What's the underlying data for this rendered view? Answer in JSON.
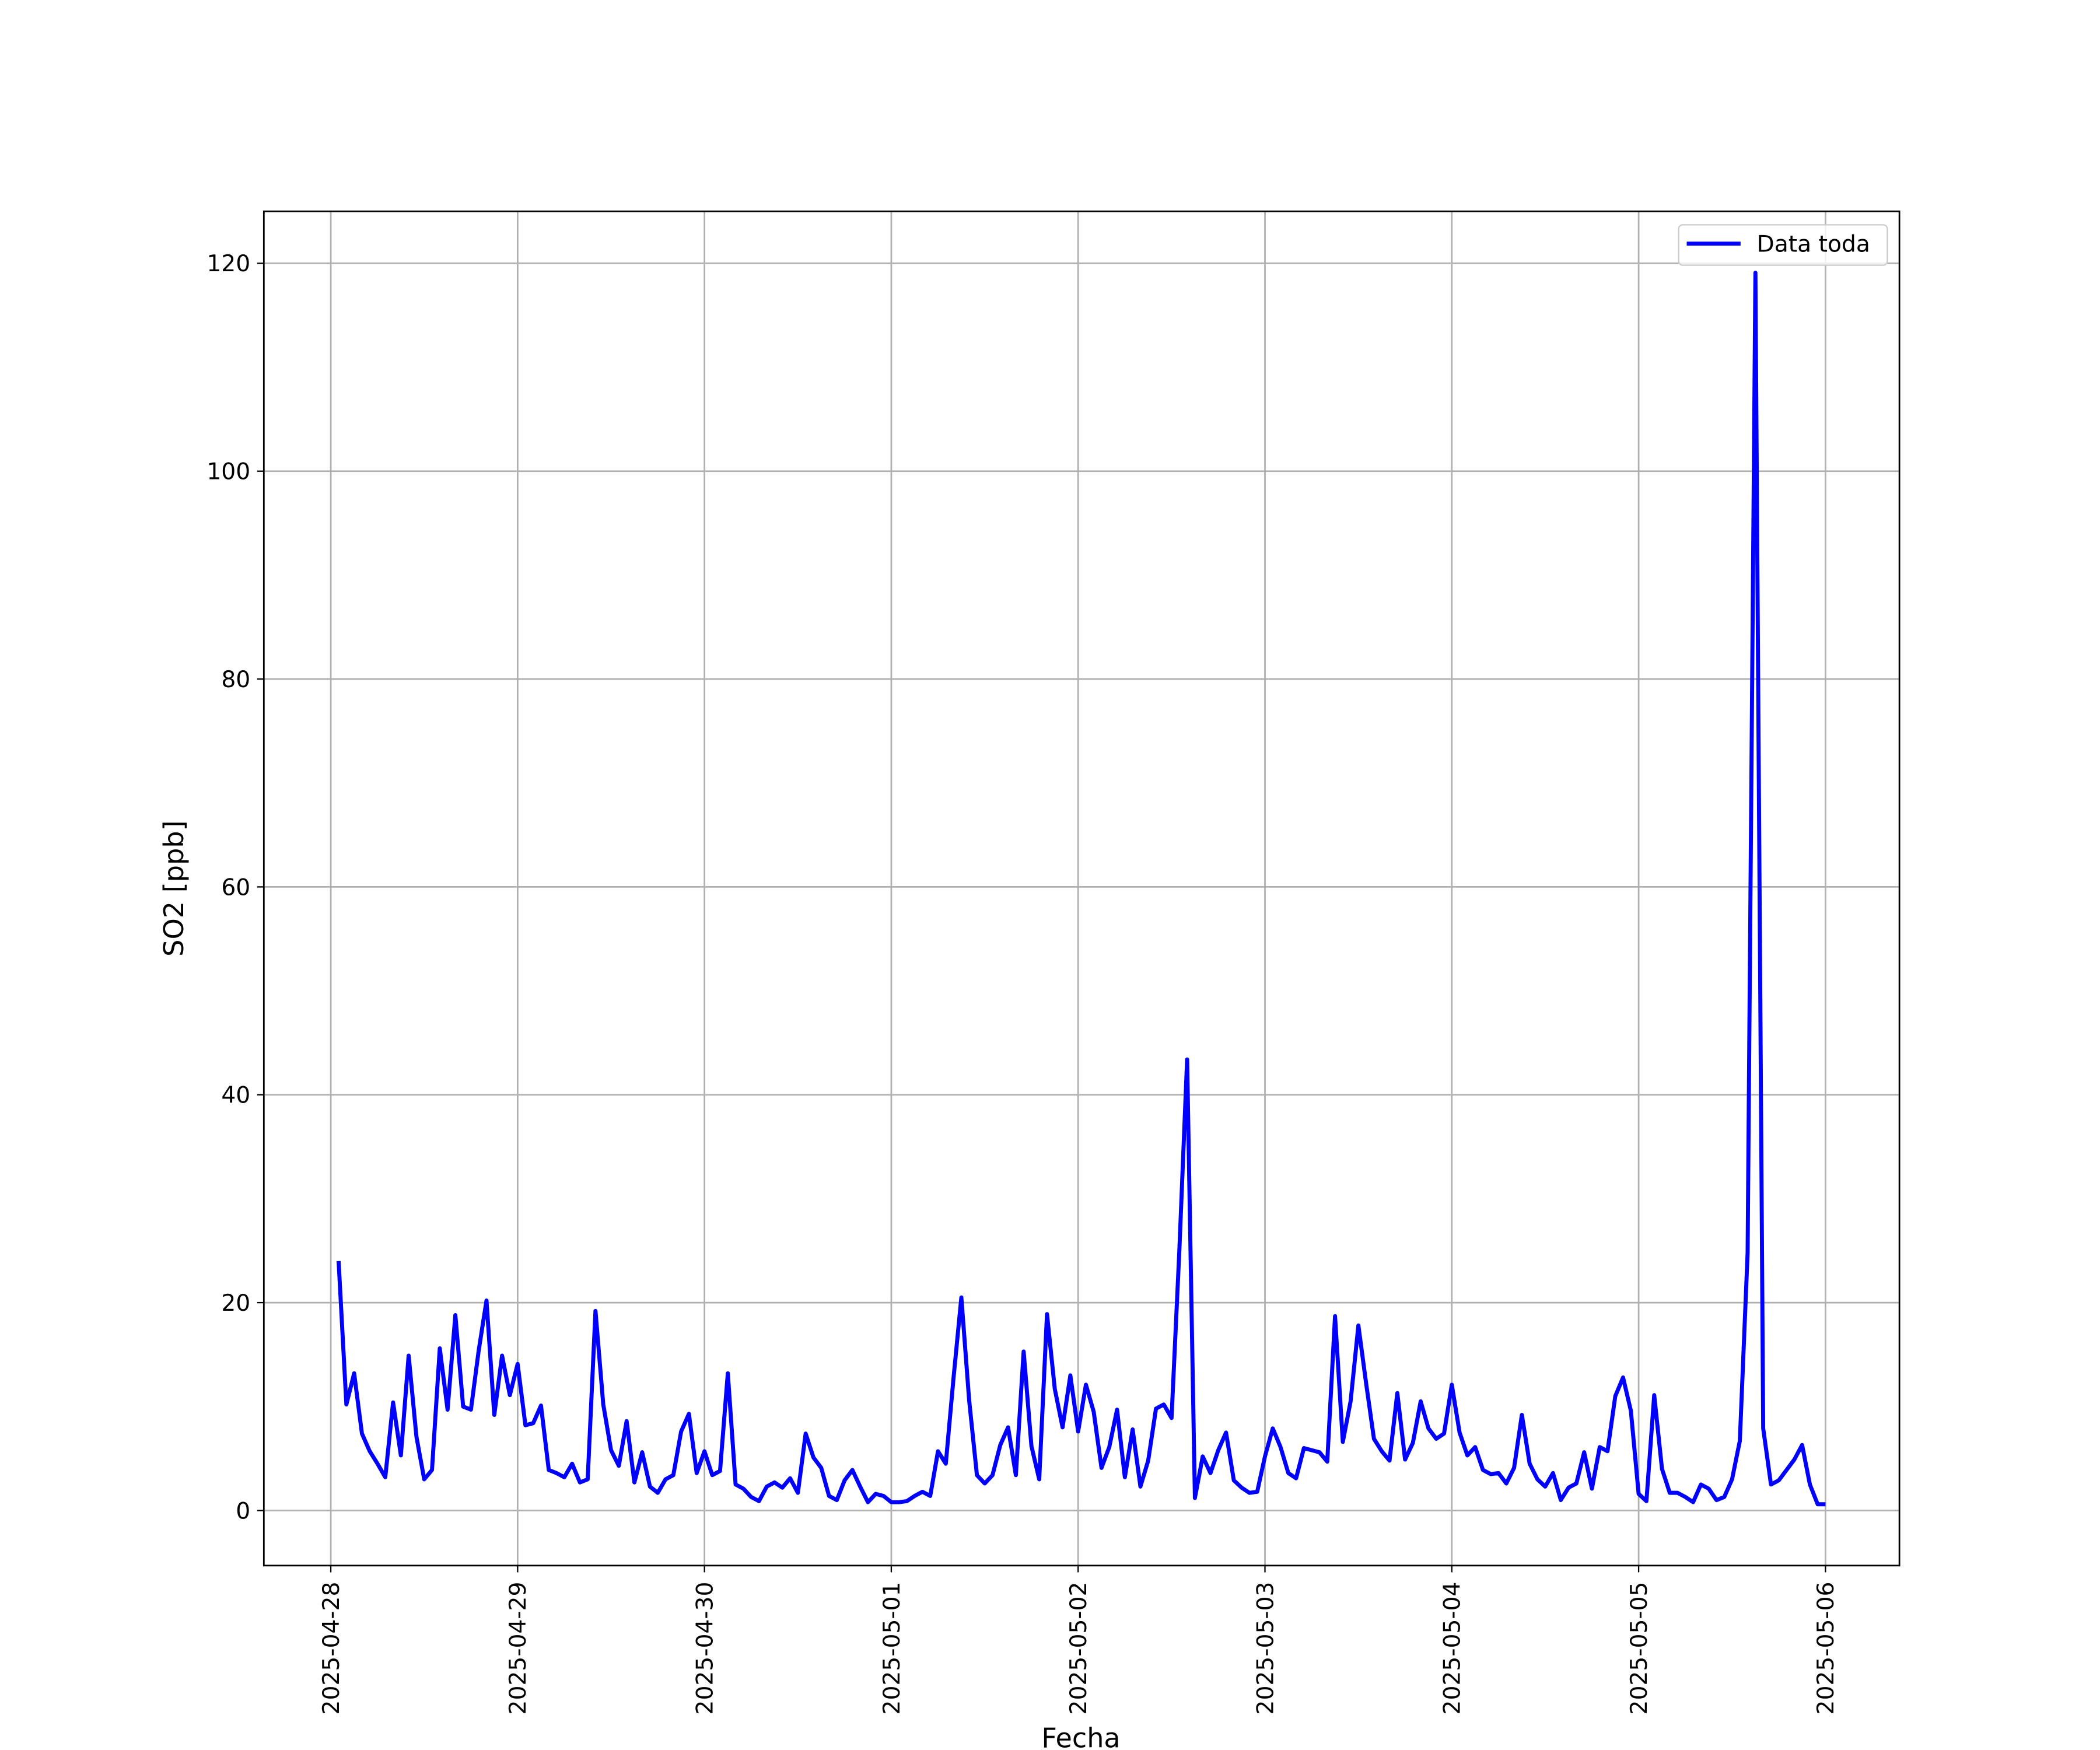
{
  "chart_data": {
    "type": "line",
    "xlabel": "Fecha",
    "ylabel": "SO2 [ppb]",
    "x": [
      1,
      2,
      3,
      4,
      5,
      6,
      7,
      8,
      9,
      10,
      11,
      12,
      13,
      14,
      15,
      16,
      17,
      18,
      19,
      20,
      21,
      22,
      23,
      24,
      25,
      26,
      27,
      28,
      29,
      30,
      31,
      32,
      33,
      34,
      35,
      36,
      37,
      38,
      39,
      40,
      41,
      42,
      43,
      44,
      45,
      46,
      47,
      48,
      49,
      50,
      51,
      52,
      53,
      54,
      55,
      56,
      57,
      58,
      59,
      60,
      61,
      62,
      63,
      64,
      65,
      66,
      67,
      68,
      69,
      70,
      71,
      72,
      73,
      74,
      75,
      76,
      77,
      78,
      79,
      80,
      81,
      82,
      83,
      84,
      85,
      86,
      87,
      88,
      89,
      90,
      91,
      92,
      93,
      94,
      95,
      96,
      97,
      98,
      99,
      100,
      101,
      102,
      103,
      104,
      105,
      106,
      107,
      108,
      109,
      110,
      111,
      112,
      113,
      114,
      115,
      116,
      117,
      118,
      119,
      120,
      121,
      122,
      123,
      124,
      125,
      126,
      127,
      128,
      129,
      130,
      131,
      132,
      133,
      134,
      135,
      136,
      137,
      138,
      139,
      140,
      141,
      142,
      143,
      144,
      145,
      146,
      147,
      148,
      149,
      150,
      151,
      152,
      153,
      154,
      155,
      156,
      157,
      158,
      159,
      160,
      161,
      162,
      163,
      164,
      165,
      166,
      167,
      168,
      169,
      170,
      171,
      172,
      173,
      174,
      175,
      176,
      177,
      178,
      179,
      180,
      181,
      182,
      183,
      184,
      185,
      186,
      187,
      188,
      189,
      190,
      191,
      192
    ],
    "series": [
      {
        "name": "Data toda",
        "color": "#0000ff",
        "values": [
          24.0,
          10.2,
          13.2,
          7.4,
          5.7,
          4.5,
          3.2,
          10.4,
          5.3,
          14.9,
          7.1,
          3.0,
          3.9,
          15.6,
          9.7,
          18.8,
          10.0,
          9.7,
          15.4,
          20.2,
          9.2,
          14.9,
          11.1,
          14.1,
          8.2,
          8.4,
          10.1,
          3.9,
          3.6,
          3.2,
          4.5,
          2.7,
          3.0,
          19.2,
          10.2,
          5.8,
          4.3,
          8.6,
          2.7,
          5.6,
          2.3,
          1.7,
          3.0,
          3.4,
          7.6,
          9.3,
          3.6,
          5.7,
          3.4,
          3.8,
          13.2,
          2.5,
          2.1,
          1.3,
          0.9,
          2.3,
          2.7,
          2.2,
          3.1,
          1.7,
          7.4,
          5.1,
          4.1,
          1.4,
          1.0,
          2.9,
          3.9,
          2.3,
          0.8,
          1.6,
          1.4,
          0.8,
          0.8,
          0.9,
          1.4,
          1.8,
          1.4,
          5.7,
          4.5,
          12.8,
          20.5,
          10.6,
          3.4,
          2.6,
          3.4,
          6.3,
          8.0,
          3.4,
          15.3,
          6.2,
          3.0,
          18.9,
          11.7,
          8.0,
          13.0,
          7.6,
          12.1,
          9.5,
          4.1,
          6.1,
          9.7,
          3.2,
          7.8,
          2.3,
          4.8,
          9.8,
          10.2,
          8.9,
          25.0,
          43.4,
          1.2,
          5.2,
          3.6,
          5.8,
          7.5,
          2.9,
          2.2,
          1.7,
          1.8,
          5.2,
          7.9,
          6.1,
          3.6,
          3.1,
          6.0,
          5.8,
          5.6,
          4.7,
          18.7,
          6.6,
          10.5,
          17.8,
          12.2,
          6.9,
          5.7,
          4.8,
          11.3,
          4.9,
          6.5,
          10.5,
          7.9,
          6.9,
          7.4,
          12.1,
          7.5,
          5.3,
          6.1,
          3.9,
          3.5,
          3.6,
          2.6,
          4.1,
          9.2,
          4.5,
          3.0,
          2.3,
          3.6,
          1.0,
          2.2,
          2.6,
          5.6,
          2.1,
          6.1,
          5.7,
          11.0,
          12.8,
          9.6,
          1.6,
          0.9,
          11.1,
          4.0,
          1.7,
          1.7,
          1.3,
          0.8,
          2.5,
          2.1,
          1.0,
          1.3,
          3.0,
          6.7,
          24.8,
          119.1,
          7.9,
          2.5,
          2.9,
          3.9,
          4.9,
          6.3,
          2.5,
          0.6,
          0.6
        ]
      }
    ],
    "xlim": [
      -8.6,
      201.5
    ],
    "xticks": [
      {
        "value": 0,
        "label": "2025-04-28"
      },
      {
        "value": 24,
        "label": "2025-04-29"
      },
      {
        "value": 48,
        "label": "2025-04-30"
      },
      {
        "value": 72,
        "label": "2025-05-01"
      },
      {
        "value": 96,
        "label": "2025-05-02"
      },
      {
        "value": 120,
        "label": "2025-05-03"
      },
      {
        "value": 144,
        "label": "2025-05-04"
      },
      {
        "value": 168,
        "label": "2025-05-05"
      },
      {
        "value": 192,
        "label": "2025-05-06"
      }
    ],
    "ylim": [
      -5.3,
      125.0
    ],
    "yticks": [
      0,
      20,
      40,
      60,
      80,
      100,
      120
    ],
    "grid": true,
    "legend": "upper right"
  }
}
